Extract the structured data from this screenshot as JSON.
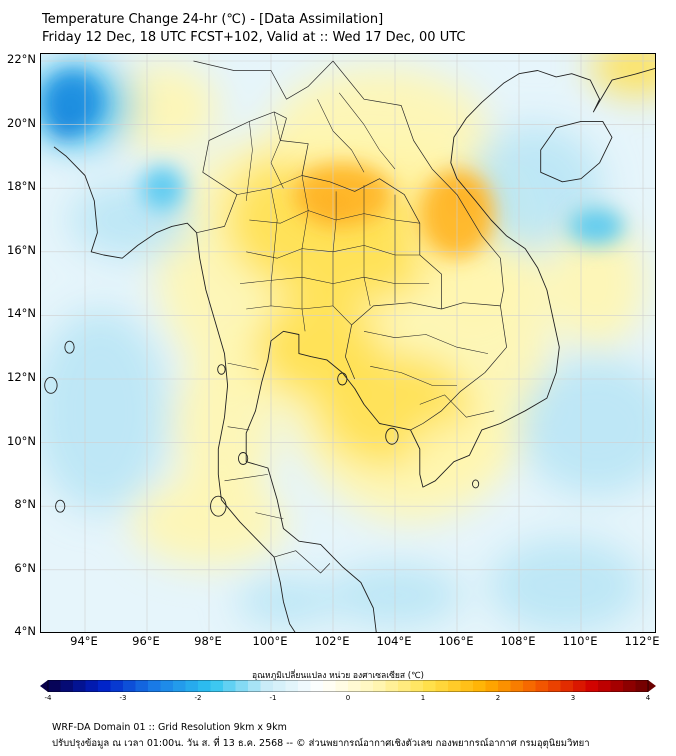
{
  "header": {
    "title": "Temperature Change 24-hr (℃) - [Data Assimilation]",
    "subtitle": "Friday 12 Dec, 18 UTC FCST+102, Valid at :: Wed 17 Dec, 00 UTC"
  },
  "map": {
    "lat_labels": [
      "22°N",
      "20°N",
      "18°N",
      "16°N",
      "14°N",
      "12°N",
      "10°N",
      "8°N",
      "6°N",
      "4°N"
    ],
    "lon_labels": [
      "94°E",
      "96°E",
      "98°E",
      "100°E",
      "102°E",
      "104°E",
      "106°E",
      "108°E",
      "110°E",
      "112°E"
    ],
    "lat_range": [
      4,
      22.3
    ],
    "lon_range": [
      93,
      112.5
    ]
  },
  "colorbar": {
    "title": "อุณหภูมิเปลี่ยนแปลง หน่วย องศาเซลเซียส (℃)",
    "ticks": [
      "-4",
      "-3",
      "-2",
      "-1",
      "0",
      "1",
      "2",
      "3",
      "4"
    ],
    "range": [
      -4,
      4
    ],
    "colors_low_to_high": [
      "#08004a",
      "#0021c8",
      "#1a7fe8",
      "#2fc4f0",
      "#c9ecf8",
      "#ffffff",
      "#fff7b8",
      "#ffe04a",
      "#ffb000",
      "#f45a00",
      "#d10000",
      "#6a0000"
    ]
  },
  "footer": {
    "line1": "WRF-DA Domain 01 :: Grid Resolution 9km x 9km",
    "line2": "ปรับปรุงข้อมูล ณ เวลา 01:00น. วัน ส. ที่ 13 ธ.ค. 2568 -- © ส่วนพยากรณ์อากาศเชิงตัวเลข กองพยากรณ์อากาศ กรมอุตุนิยมวิทยา"
  },
  "field_colors": {
    "sea_base": "#e6f5fb",
    "cool_light": "#b9e6f5",
    "cool_mid": "#5ccaf0",
    "cool_deep": "#1d8fe0",
    "cool_max": "#0b4fc4",
    "warm_light": "#fff6b0",
    "warm_mid": "#ffe04f",
    "warm_orange": "#ffb627",
    "warm_hot": "#f57d12",
    "coast": "#222222",
    "border": "#2a2a2a",
    "grid": "#cfcfcf"
  }
}
